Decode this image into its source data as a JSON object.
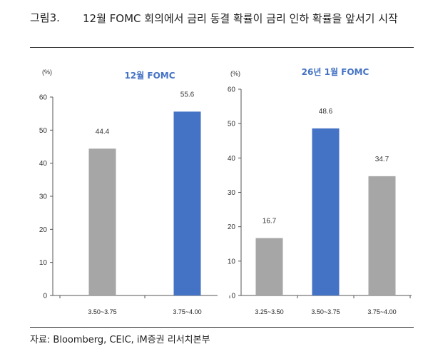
{
  "figure": {
    "label": "그림3.",
    "title": "12월 FOMC 회의에서 금리 동결 확률이 금리 인하 확률을 앞서기 시작",
    "source": "자료: Bloomberg, CEIC, iM증권 리서치본부"
  },
  "colors": {
    "gray": "#a6a6a6",
    "blue": "#4472c4",
    "title": "#4472c4"
  },
  "chart_data": [
    {
      "type": "bar",
      "title": "12월 FOMC",
      "ylabel": "(%)",
      "ylim": [
        0,
        60
      ],
      "yticks": [
        "0",
        "10",
        "20",
        "30",
        "40",
        "50",
        "60"
      ],
      "categories": [
        "3.50~3.75",
        "3.75~4.00"
      ],
      "values": [
        44.4,
        55.6
      ],
      "value_labels": [
        "44.4",
        "55.6"
      ],
      "bar_colors": [
        "#a6a6a6",
        "#4472c4"
      ]
    },
    {
      "type": "bar",
      "title": "26년 1월 FOMC",
      "ylabel": "(%)",
      "ylim": [
        0,
        60
      ],
      "yticks": [
        "0",
        "10",
        "20",
        "30",
        "40",
        "50",
        "60"
      ],
      "categories": [
        "3.25~3.50",
        "3.50~3.75",
        "3.75~4.00"
      ],
      "values": [
        16.7,
        48.6,
        34.7
      ],
      "value_labels": [
        "16.7",
        "48.6",
        "34.7"
      ],
      "bar_colors": [
        "#a6a6a6",
        "#4472c4",
        "#a6a6a6"
      ]
    }
  ]
}
